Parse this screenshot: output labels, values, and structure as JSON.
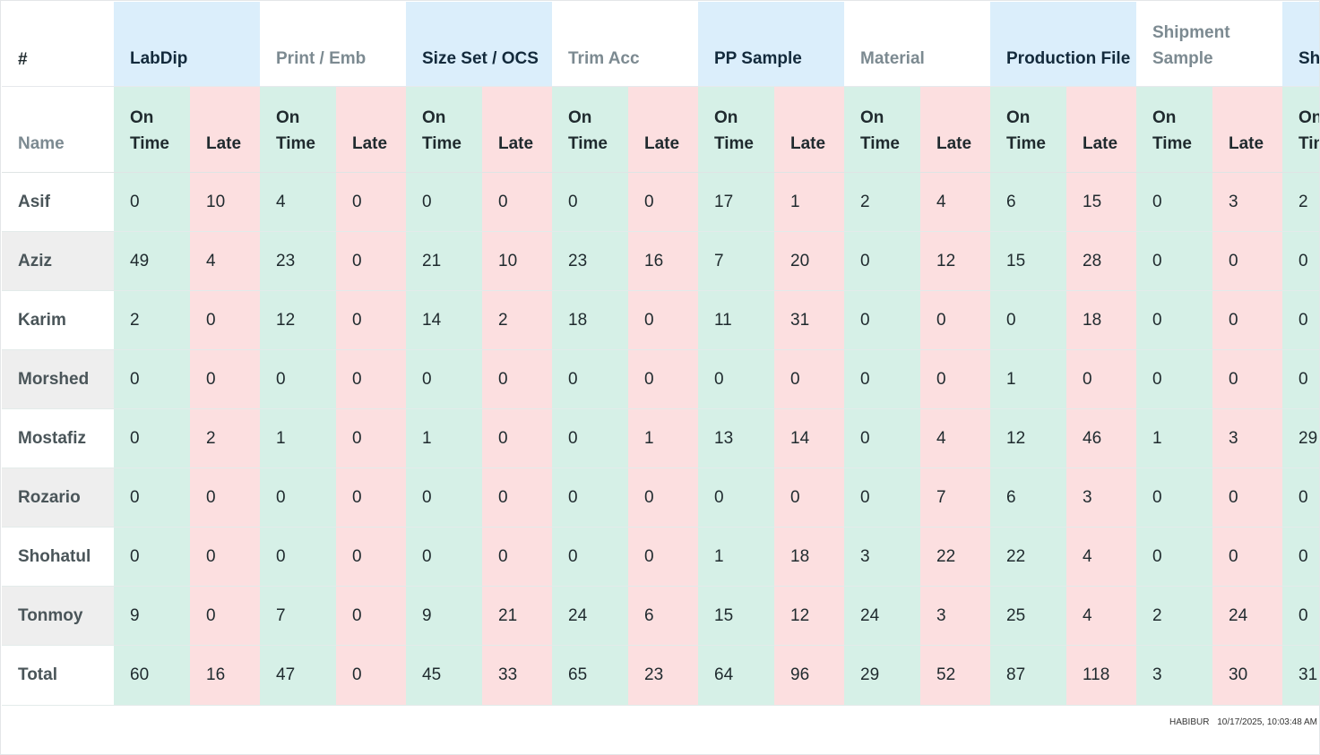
{
  "table": {
    "hash_label": "#",
    "name_label": "Name",
    "on_time_label": "On Time",
    "late_label": "Late",
    "total_label": "Total",
    "groups": [
      {
        "label": "LabDip",
        "style": "blue"
      },
      {
        "label": "Print / Emb",
        "style": "white"
      },
      {
        "label": "Size Set / OCS",
        "style": "blue"
      },
      {
        "label": "Trim Acc",
        "style": "white"
      },
      {
        "label": "PP Sample",
        "style": "blue"
      },
      {
        "label": "Material",
        "style": "white"
      },
      {
        "label": "Production File",
        "style": "blue"
      },
      {
        "label": "Shipment Sample",
        "style": "white"
      },
      {
        "label": "Sh",
        "style": "blue"
      }
    ],
    "rows": [
      {
        "name": "Asif",
        "shaded": false,
        "values": [
          "0",
          "10",
          "4",
          "0",
          "0",
          "0",
          "0",
          "0",
          "17",
          "1",
          "2",
          "4",
          "6",
          "15",
          "0",
          "3",
          "2"
        ]
      },
      {
        "name": "Aziz",
        "shaded": true,
        "values": [
          "49",
          "4",
          "23",
          "0",
          "21",
          "10",
          "23",
          "16",
          "7",
          "20",
          "0",
          "12",
          "15",
          "28",
          "0",
          "0",
          "0"
        ]
      },
      {
        "name": "Karim",
        "shaded": false,
        "values": [
          "2",
          "0",
          "12",
          "0",
          "14",
          "2",
          "18",
          "0",
          "11",
          "31",
          "0",
          "0",
          "0",
          "18",
          "0",
          "0",
          "0"
        ]
      },
      {
        "name": "Morshed",
        "shaded": true,
        "values": [
          "0",
          "0",
          "0",
          "0",
          "0",
          "0",
          "0",
          "0",
          "0",
          "0",
          "0",
          "0",
          "1",
          "0",
          "0",
          "0",
          "0"
        ]
      },
      {
        "name": "Mostafiz",
        "shaded": false,
        "values": [
          "0",
          "2",
          "1",
          "0",
          "1",
          "0",
          "0",
          "1",
          "13",
          "14",
          "0",
          "4",
          "12",
          "46",
          "1",
          "3",
          "29"
        ]
      },
      {
        "name": "Rozario",
        "shaded": true,
        "values": [
          "0",
          "0",
          "0",
          "0",
          "0",
          "0",
          "0",
          "0",
          "0",
          "0",
          "0",
          "7",
          "6",
          "3",
          "0",
          "0",
          "0"
        ]
      },
      {
        "name": "Shohatul",
        "shaded": false,
        "values": [
          "0",
          "0",
          "0",
          "0",
          "0",
          "0",
          "0",
          "0",
          "1",
          "18",
          "3",
          "22",
          "22",
          "4",
          "0",
          "0",
          "0"
        ]
      },
      {
        "name": "Tonmoy",
        "shaded": true,
        "values": [
          "9",
          "0",
          "7",
          "0",
          "9",
          "21",
          "24",
          "6",
          "15",
          "12",
          "24",
          "3",
          "25",
          "4",
          "2",
          "24",
          "0"
        ]
      }
    ],
    "totals": [
      "60",
      "16",
      "47",
      "0",
      "45",
      "33",
      "65",
      "23",
      "64",
      "96",
      "29",
      "52",
      "87",
      "118",
      "3",
      "30",
      "31"
    ]
  },
  "footer": {
    "user": "HABIBUR",
    "timestamp": "10/17/2025, 10:03:48 AM"
  },
  "colors": {
    "group_blue": "#dbeefb",
    "on_time": "#d6f0e7",
    "late": "#fcdfe0"
  }
}
